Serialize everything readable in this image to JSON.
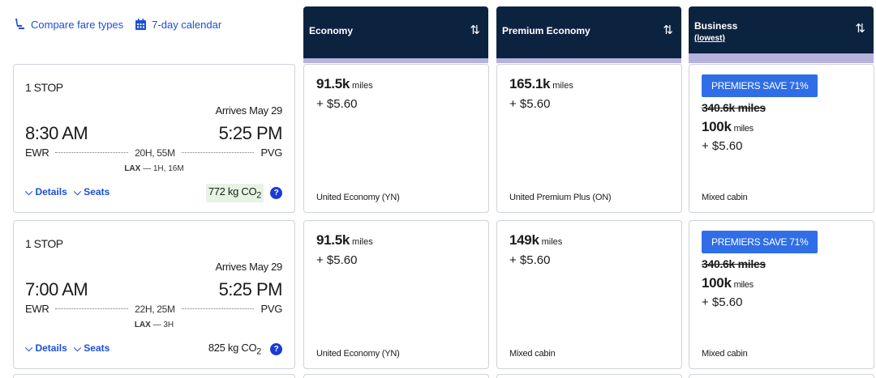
{
  "toolbar": {
    "compare_label": "Compare fare types",
    "calendar_label": "7-day calendar"
  },
  "columns": [
    {
      "label": "Economy",
      "sort_icon": "sort-icon"
    },
    {
      "label": "Premium Economy",
      "sort_icon": "sort-icon"
    },
    {
      "label": "Business",
      "sublabel": "(lowest)",
      "sort_icon": "sort-icon"
    }
  ],
  "sort_glyph": "⇅",
  "flights": [
    {
      "stops": "1 STOP",
      "arrives": "Arrives May 29",
      "depart_time": "8:30 AM",
      "arrive_time": "5:25 PM",
      "origin": "EWR",
      "destination": "PVG",
      "duration": "20H, 55M",
      "layover_airport": "LAX",
      "layover_sep": " — ",
      "layover_time": "1H, 16M",
      "details_label": "Details",
      "seats_label": "Seats",
      "co2": "772 kg CO",
      "co2_sub": "2",
      "co2_highlight": true,
      "economy": {
        "miles": "91.5k",
        "unit": "miles",
        "fees": "+ $5.60",
        "cabin": "United Economy (YN)"
      },
      "premium": {
        "miles": "165.1k",
        "unit": "miles",
        "fees": "+ $5.60",
        "cabin": "United Premium Plus (ON)"
      },
      "business": {
        "badge": "PREMIERS SAVE 71%",
        "original": "340.6k miles",
        "miles": "100k",
        "unit": "miles",
        "fees": "+ $5.60",
        "cabin": "Mixed cabin"
      }
    },
    {
      "stops": "1 STOP",
      "arrives": "Arrives May 29",
      "depart_time": "7:00 AM",
      "arrive_time": "5:25 PM",
      "origin": "EWR",
      "destination": "PVG",
      "duration": "22H, 25M",
      "layover_airport": "LAX",
      "layover_sep": " — ",
      "layover_time": "3H",
      "details_label": "Details",
      "seats_label": "Seats",
      "co2": "825 kg CO",
      "co2_sub": "2",
      "co2_highlight": false,
      "economy": {
        "miles": "91.5k",
        "unit": "miles",
        "fees": "+ $5.60",
        "cabin": "United Economy (YN)"
      },
      "premium": {
        "miles": "149k",
        "unit": "miles",
        "fees": "+ $5.60",
        "cabin": "Mixed cabin"
      },
      "business": {
        "badge": "PREMIERS SAVE 71%",
        "original": "340.6k miles",
        "miles": "100k",
        "unit": "miles",
        "fees": "+ $5.60",
        "cabin": "Mixed cabin"
      }
    }
  ],
  "colors": {
    "header_bg": "#0c2340",
    "header_bar": "#b5b2dd",
    "link_blue": "#1a4fd6",
    "badge_blue": "#2f6ee6",
    "co2_green_bg": "#e6f4e4"
  }
}
